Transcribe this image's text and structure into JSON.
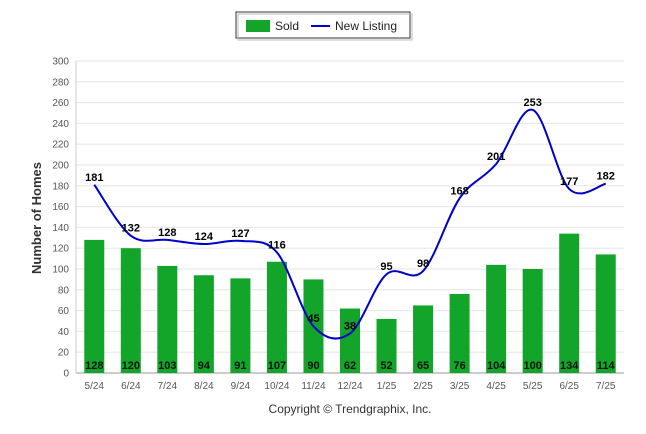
{
  "chart_data": {
    "type": "bar",
    "categories": [
      "5/24",
      "6/24",
      "7/24",
      "8/24",
      "9/24",
      "10/24",
      "11/24",
      "12/24",
      "1/25",
      "2/25",
      "3/25",
      "4/25",
      "5/25",
      "6/25",
      "7/25"
    ],
    "series": [
      {
        "name": "Sold",
        "type": "bar",
        "color": "#13a52a",
        "values": [
          128,
          120,
          103,
          94,
          91,
          107,
          90,
          62,
          52,
          65,
          76,
          104,
          100,
          134,
          114
        ]
      },
      {
        "name": "New Listing",
        "type": "line",
        "color": "#0000cc",
        "values": [
          181,
          132,
          128,
          124,
          127,
          116,
          45,
          38,
          95,
          98,
          168,
          201,
          253,
          177,
          182
        ]
      }
    ],
    "title": "",
    "xlabel": "",
    "ylabel": "Number of Homes",
    "ylim": [
      0,
      300
    ],
    "yticks": [
      0,
      20,
      40,
      60,
      80,
      100,
      120,
      140,
      160,
      180,
      200,
      220,
      240,
      260,
      280,
      300
    ],
    "grid": true,
    "legend": "top-center",
    "footer": "Copyright © Trendgraphix, Inc."
  }
}
